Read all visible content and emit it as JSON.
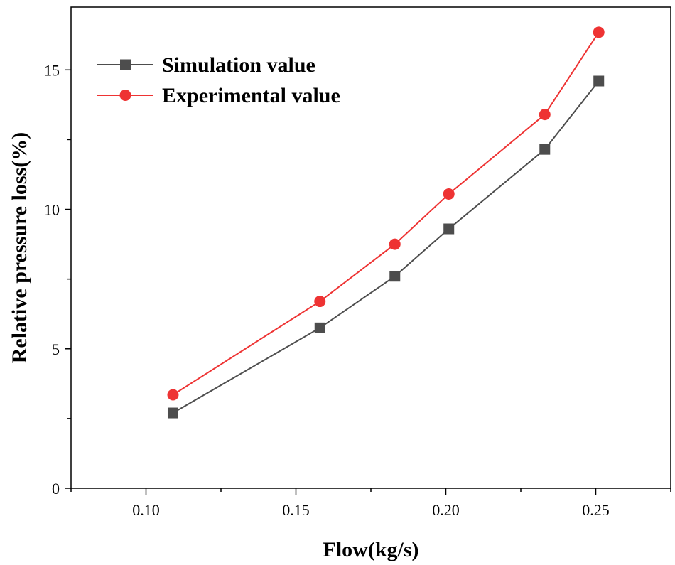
{
  "chart_data": {
    "type": "line",
    "title": "",
    "xlabel": "Flow(kg/s)",
    "ylabel": "Relative pressure loss(%)",
    "xlim": [
      0.075,
      0.275
    ],
    "ylim": [
      0,
      17.25
    ],
    "xticks": [
      0.1,
      0.15,
      0.2,
      0.25
    ],
    "xtick_labels": [
      "0.10",
      "0.15",
      "0.20",
      "0.25"
    ],
    "yticks": [
      0,
      5,
      10,
      15
    ],
    "ytick_labels": [
      "0",
      "5",
      "10",
      "15"
    ],
    "grid": false,
    "legend_position": "top-left",
    "series": [
      {
        "name": "Simulation value",
        "color": "#4d4d4d",
        "marker": "square",
        "x": [
          0.109,
          0.158,
          0.183,
          0.201,
          0.233,
          0.251
        ],
        "y": [
          2.7,
          5.75,
          7.6,
          9.3,
          12.15,
          14.6
        ]
      },
      {
        "name": "Experimental value",
        "color": "#ee3333",
        "marker": "circle",
        "x": [
          0.109,
          0.158,
          0.183,
          0.201,
          0.233,
          0.251
        ],
        "y": [
          3.35,
          6.7,
          8.75,
          10.55,
          13.4,
          16.35
        ]
      }
    ]
  }
}
